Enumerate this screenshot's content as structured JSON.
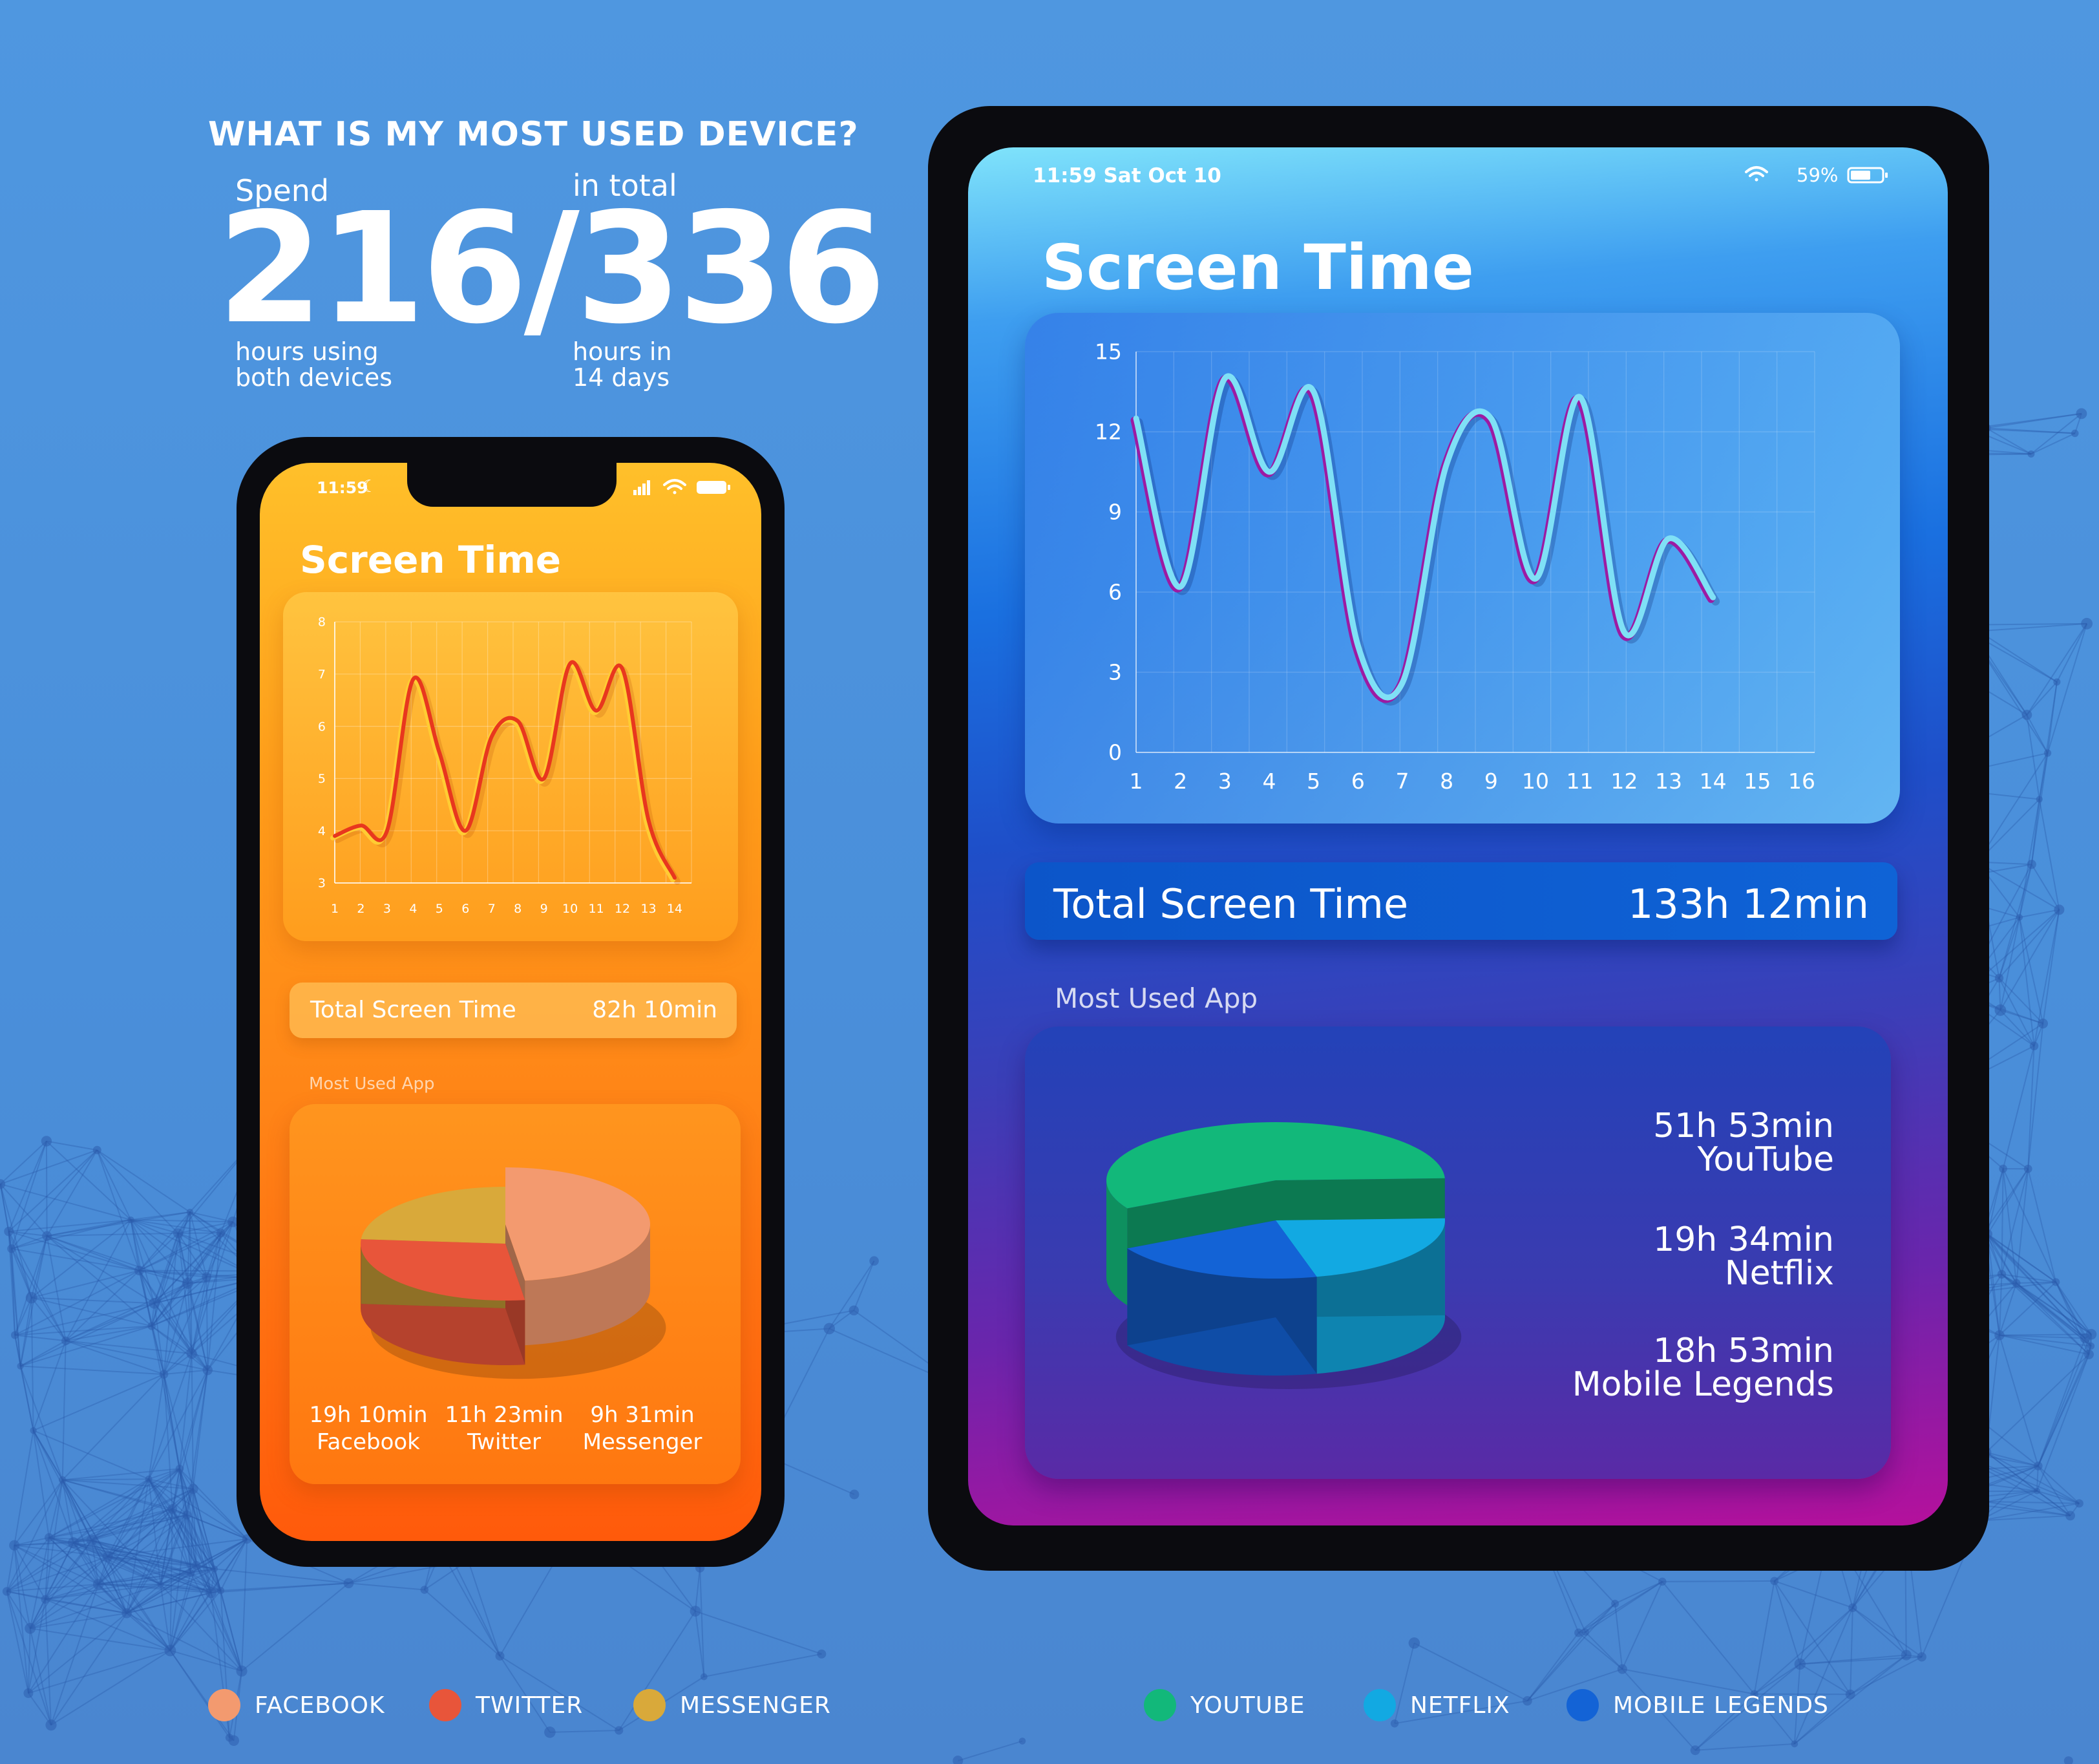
{
  "header": {
    "headline": "WHAT IS MY MOST USED DEVICE?",
    "spend_label": "Spend",
    "in_total_label": "in total",
    "big_number": "216/336",
    "caption_left_line1": "hours using",
    "caption_left_line2": "both devices",
    "caption_right_line1": "hours in",
    "caption_right_line2": "14 days"
  },
  "phone": {
    "status_time": "11:59",
    "title": "Screen Time",
    "total_label": "Total Screen Time",
    "total_value": "82h 10min",
    "most_used_label": "Most Used App",
    "apps": [
      {
        "time": "19h 10min",
        "name": "Facebook"
      },
      {
        "time": "11h 23min",
        "name": "Twitter"
      },
      {
        "time": "9h 31min",
        "name": "Messenger"
      }
    ]
  },
  "tablet": {
    "status_time": "11:59 Sat Oct 10",
    "battery": "59%",
    "title": "Screen Time",
    "total_label": "Total Screen Time",
    "total_value": "133h 12min",
    "most_used_label": "Most Used App",
    "apps": [
      {
        "time": "51h 53min",
        "name": "YouTube"
      },
      {
        "time": "19h 34min",
        "name": "Netflix"
      },
      {
        "time": "18h 53min",
        "name": "Mobile Legends"
      }
    ]
  },
  "legends": {
    "phone": [
      {
        "label": "FACEBOOK",
        "color": "#f39a6f"
      },
      {
        "label": "TWITTER",
        "color": "#e8553a"
      },
      {
        "label": "MESSENGER",
        "color": "#d9a93a"
      }
    ],
    "tablet": [
      {
        "label": "YOUTUBE",
        "color": "#12b87a"
      },
      {
        "label": "NETFLIX",
        "color": "#12a9e2"
      },
      {
        "label": "MOBILE LEGENDS",
        "color": "#1363d6"
      }
    ]
  },
  "chart_data": [
    {
      "type": "line",
      "title": "Screen Time",
      "x": [
        1,
        2,
        3,
        4,
        5,
        6,
        7,
        8,
        9,
        10,
        11,
        12,
        13,
        14
      ],
      "values": [
        3.9,
        4.1,
        4.0,
        6.9,
        5.5,
        4.0,
        5.8,
        6.1,
        5.0,
        7.2,
        6.3,
        7.1,
        4.2,
        3.1
      ],
      "xticks": [
        1,
        2,
        3,
        4,
        5,
        6,
        7,
        8,
        9,
        10,
        11,
        12,
        13,
        14
      ],
      "yticks": [
        3,
        4,
        5,
        6,
        7,
        8
      ],
      "ylim": [
        3,
        8
      ],
      "line_color": "#e8371e"
    },
    {
      "type": "line",
      "title": "Screen Time",
      "x": [
        1,
        2,
        3,
        4,
        5,
        6,
        7,
        8,
        9,
        10,
        11,
        12,
        13,
        14
      ],
      "values": [
        12.5,
        6.2,
        14.0,
        10.5,
        13.5,
        4.0,
        2.6,
        10.8,
        12.5,
        6.5,
        13.3,
        4.5,
        8.0,
        5.8
      ],
      "xticks": [
        1,
        2,
        3,
        4,
        5,
        6,
        7,
        8,
        9,
        10,
        11,
        12,
        13,
        14,
        15,
        16
      ],
      "yticks": [
        0,
        3,
        6,
        9,
        12,
        15
      ],
      "ylim": [
        0,
        15
      ],
      "line_color": "#7fe0f6"
    },
    {
      "type": "pie",
      "labels": [
        "Facebook",
        "Twitter",
        "Messenger"
      ],
      "values": [
        19.17,
        11.38,
        9.52
      ],
      "value_labels": [
        "19h 10min",
        "11h 23min",
        "9h 31min"
      ],
      "colors": [
        "#f39a6f",
        "#e8553a",
        "#d9a93a"
      ]
    },
    {
      "type": "pie",
      "labels": [
        "YouTube",
        "Netflix",
        "Mobile Legends"
      ],
      "values": [
        51.88,
        19.57,
        18.88
      ],
      "value_labels": [
        "51h 53min",
        "19h 34min",
        "18h 53min"
      ],
      "colors": [
        "#12b87a",
        "#12a9e2",
        "#1363d6"
      ]
    }
  ]
}
